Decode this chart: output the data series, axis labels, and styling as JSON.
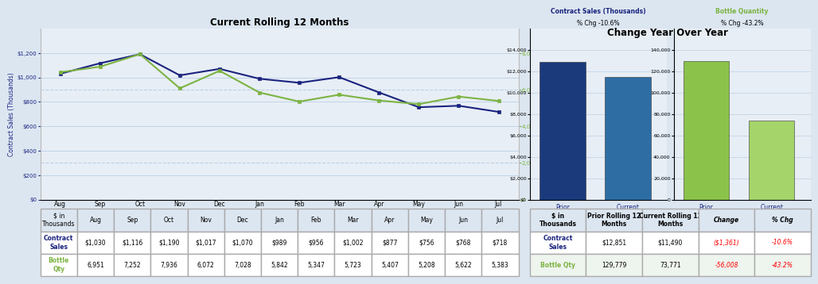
{
  "title_left": "Current Rolling 12 Months",
  "title_right": "Change Year Over Year",
  "months": [
    "Aug",
    "Sep",
    "Oct",
    "Nov",
    "Dec",
    "Jan",
    "Feb",
    "Mar",
    "Apr",
    "May",
    "Jun",
    "Jul"
  ],
  "contract_sales": [
    1030,
    1116,
    1190,
    1017,
    1070,
    989,
    956,
    1002,
    877,
    756,
    768,
    718
  ],
  "bottle_qty": [
    6951,
    7252,
    7936,
    6072,
    7028,
    5842,
    5347,
    5723,
    5407,
    5208,
    5622,
    5383
  ],
  "line_color_sales": "#1a237e",
  "line_color_bottle": "#7cb342",
  "bar_prior_sales": 12851,
  "bar_current_sales": 11490,
  "bar_prior_bottle": 129779,
  "bar_current_bottle": 73771,
  "bar_color_sales_prior": "#1a3a7c",
  "bar_color_sales_current": "#2e6da4",
  "bar_color_bottle_prior": "#8bc34a",
  "bar_color_bottle_current": "#a5d46a",
  "sales_pct_chg": "-10.6%",
  "bottle_pct_chg": "-43.2%",
  "table_left_header": [
    "$ in\nThousands",
    "Aug",
    "Sep",
    "Oct",
    "Nov",
    "Dec",
    "Jan",
    "Feb",
    "Mar",
    "Apr",
    "May",
    "Jun",
    "Jul"
  ],
  "table_left_row1_label": "Contract\nSales",
  "table_left_row1": [
    "$1,030",
    "$1,116",
    "$1,190",
    "$1,017",
    "$1,070",
    "$989",
    "$956",
    "$1,002",
    "$877",
    "$756",
    "$768",
    "$718"
  ],
  "table_left_row2_label": "Bottle\nQty",
  "table_left_row2": [
    "6,951",
    "7,252",
    "7,936",
    "6,072",
    "7,028",
    "5,842",
    "5,347",
    "5,723",
    "5,407",
    "5,208",
    "5,622",
    "5,383"
  ],
  "table_right_header": [
    "$ in\nThousands",
    "Prior Rolling 12\nMonths",
    "Current Rolling 12\nMonths",
    "Change",
    "% Chg"
  ],
  "table_right_row1_label": "Contract\nSales",
  "table_right_row1": [
    "$12,851",
    "$11,490",
    "($1,361)",
    "-10.6%"
  ],
  "table_right_row2_label": "Bottle Qty",
  "table_right_row2": [
    "129,779",
    "73,771",
    "-56,008",
    "-43.2%"
  ],
  "bg_color": "#dce6f1",
  "plot_bg_color": "#e8eef5",
  "grid_color": "#b8d0e8",
  "ylabel_left_color": "#1a237e",
  "ylabel_right_color": "#7cb342",
  "sales_subtitle_color": "#1a237e",
  "bottle_subtitle_color": "#7cb342",
  "xticklabel_color": "#1a237e"
}
